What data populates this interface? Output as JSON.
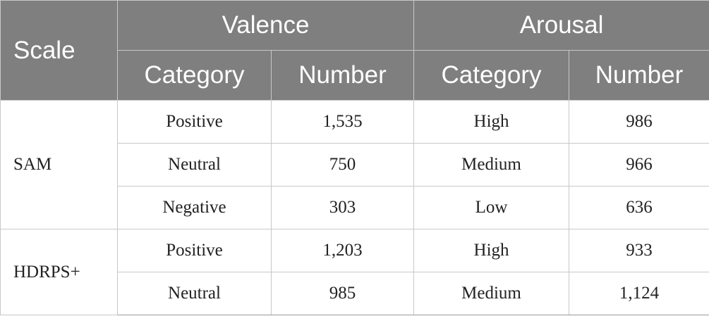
{
  "header": {
    "scale": "Scale",
    "valence": "Valence",
    "arousal": "Arousal",
    "valence_category": "Category",
    "valence_number": "Number",
    "arousal_category": "Category",
    "arousal_number": "Number"
  },
  "groups": [
    {
      "name": "SAM",
      "rows": [
        {
          "valence_category": "Positive",
          "valence_number": "1,535",
          "arousal_category": "High",
          "arousal_number": "986"
        },
        {
          "valence_category": "Neutral",
          "valence_number": "750",
          "arousal_category": "Medium",
          "arousal_number": "966"
        },
        {
          "valence_category": "Negative",
          "valence_number": "303",
          "arousal_category": "Low",
          "arousal_number": "636"
        }
      ]
    },
    {
      "name": "HDRPS+",
      "rows": [
        {
          "valence_category": "Positive",
          "valence_number": "1,203",
          "arousal_category": "High",
          "arousal_number": "933"
        },
        {
          "valence_category": "Neutral",
          "valence_number": "985",
          "arousal_category": "Medium",
          "arousal_number": "1,124"
        }
      ]
    }
  ]
}
